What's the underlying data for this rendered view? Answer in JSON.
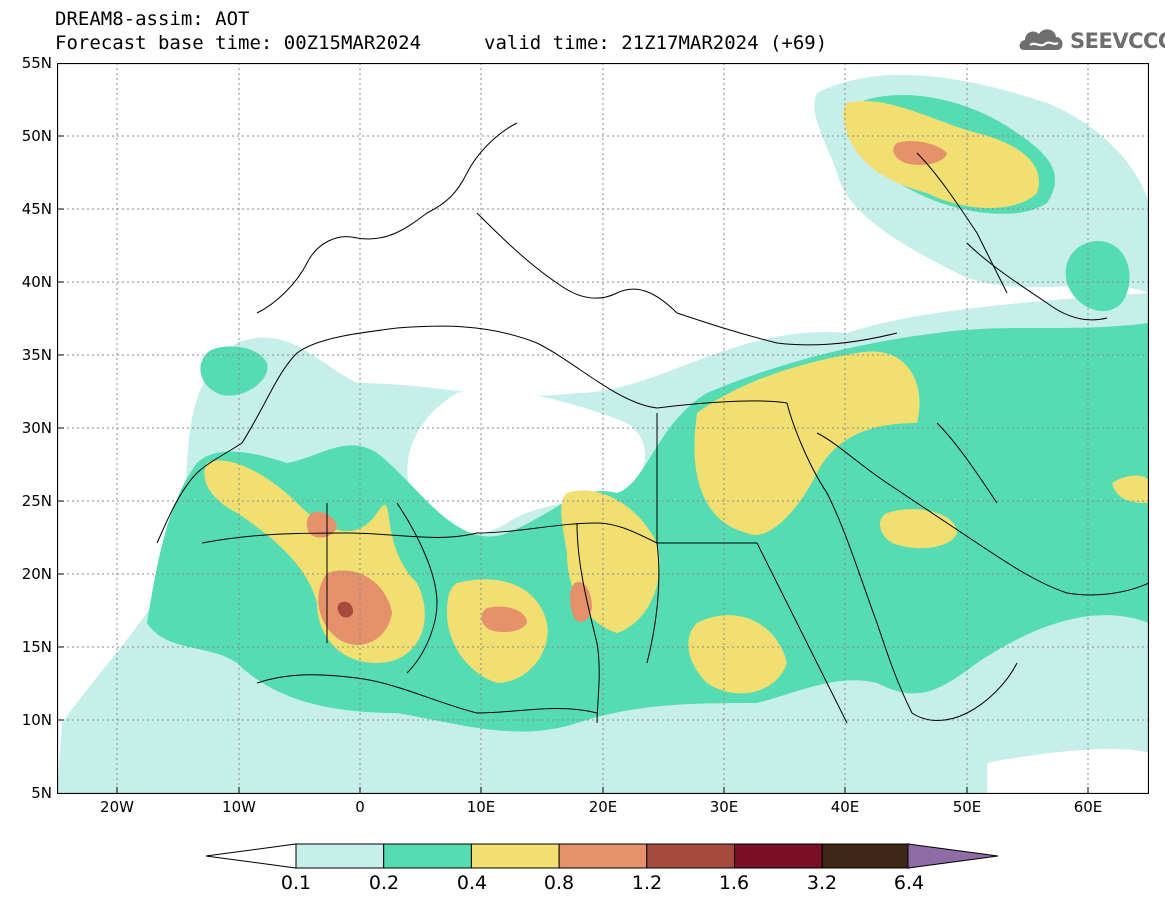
{
  "header": {
    "model_title": "DREAM8-assim: AOT",
    "base_time": "Forecast base time: 00Z15MAR2024",
    "valid_time": "valid time: 21Z17MAR2024 (+69)"
  },
  "logo": {
    "text": "SEEVCCC",
    "icon": "cloud-icon"
  },
  "map": {
    "lat_labels": [
      "55N",
      "50N",
      "45N",
      "40N",
      "35N",
      "30N",
      "25N",
      "20N",
      "15N",
      "10N",
      "5N"
    ],
    "lon_labels": [
      "20W",
      "10W",
      "0",
      "10E",
      "20E",
      "30E",
      "40E",
      "50E",
      "60E"
    ],
    "lat_range": [
      5,
      55
    ],
    "lon_range": [
      -25,
      65
    ],
    "variable": "AOT"
  },
  "colorbar": {
    "levels": [
      "0.1",
      "0.2",
      "0.4",
      "0.8",
      "1.2",
      "1.6",
      "3.2",
      "6.4"
    ],
    "colors": [
      "#c6efe9",
      "#55dcb2",
      "#f2df72",
      "#e5926c",
      "#a64a3b",
      "#7a0f26",
      "#3e2716",
      "#8f6ca5"
    ]
  }
}
